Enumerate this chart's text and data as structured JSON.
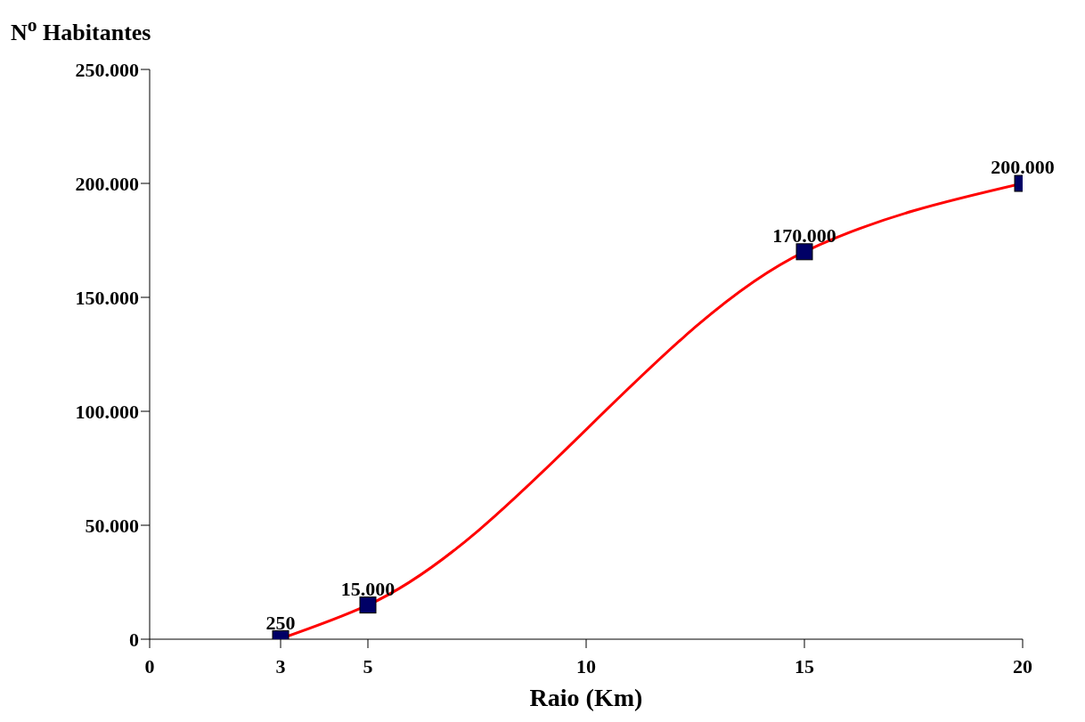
{
  "chart_data": {
    "type": "line",
    "ylabel": "N$^{o}$ Habitantes",
    "xlabel": "Raio (Km)",
    "x": [
      3,
      5,
      15,
      20
    ],
    "series": [
      {
        "type": "line",
        "color": "#ff0000",
        "marker": "none",
        "values": [
          250,
          15000,
          170000,
          200000
        ]
      },
      {
        "type": "scatter",
        "color": "#000066",
        "marker": "square",
        "values": [
          250,
          15000,
          170000,
          200000
        ],
        "value_labels": [
          "250",
          "15.000",
          "170.000",
          "200.000"
        ]
      }
    ],
    "xlim": [
      0,
      20
    ],
    "xticks": [
      0,
      3,
      5,
      10,
      15,
      20
    ],
    "ylim": [
      0,
      250000
    ],
    "yticks": [
      {
        "value": 0,
        "label": "0"
      },
      {
        "value": 50000,
        "label": "50.000"
      },
      {
        "value": 100000,
        "label": "100.000"
      },
      {
        "value": 150000,
        "label": "150.000"
      },
      {
        "value": 200000,
        "label": "200.000"
      },
      {
        "value": 250000,
        "label": "250.000"
      }
    ]
  }
}
